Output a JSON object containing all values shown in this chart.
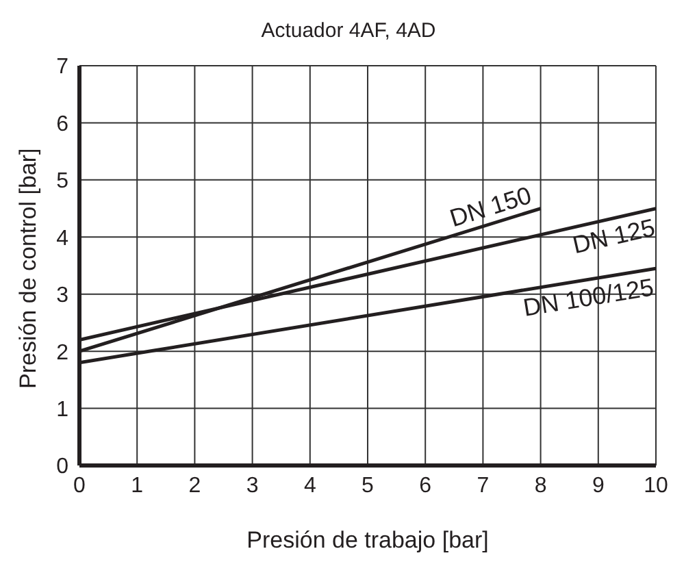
{
  "chart_data": {
    "type": "line",
    "title": "Actuador 4AF, 4AD",
    "xlabel": "Presión de trabajo [bar]",
    "ylabel": "Presión de control [bar]",
    "xlim": [
      0,
      10
    ],
    "ylim": [
      0,
      7
    ],
    "xticks": [
      0,
      1,
      2,
      3,
      4,
      5,
      6,
      7,
      8,
      9,
      10
    ],
    "yticks": [
      0,
      1,
      2,
      3,
      4,
      5,
      6,
      7
    ],
    "grid": true,
    "legend": false,
    "marker": "none",
    "line_style": "solid",
    "series": [
      {
        "name": "DN 150",
        "color": "#231f20",
        "x": [
          0,
          8
        ],
        "values": [
          2.0,
          4.5
        ]
      },
      {
        "name": "DN 125",
        "color": "#231f20",
        "x": [
          0,
          10
        ],
        "values": [
          2.2,
          4.5
        ]
      },
      {
        "name": "DN 100/125",
        "color": "#231f20",
        "x": [
          0,
          10
        ],
        "values": [
          1.8,
          3.45
        ]
      }
    ]
  }
}
